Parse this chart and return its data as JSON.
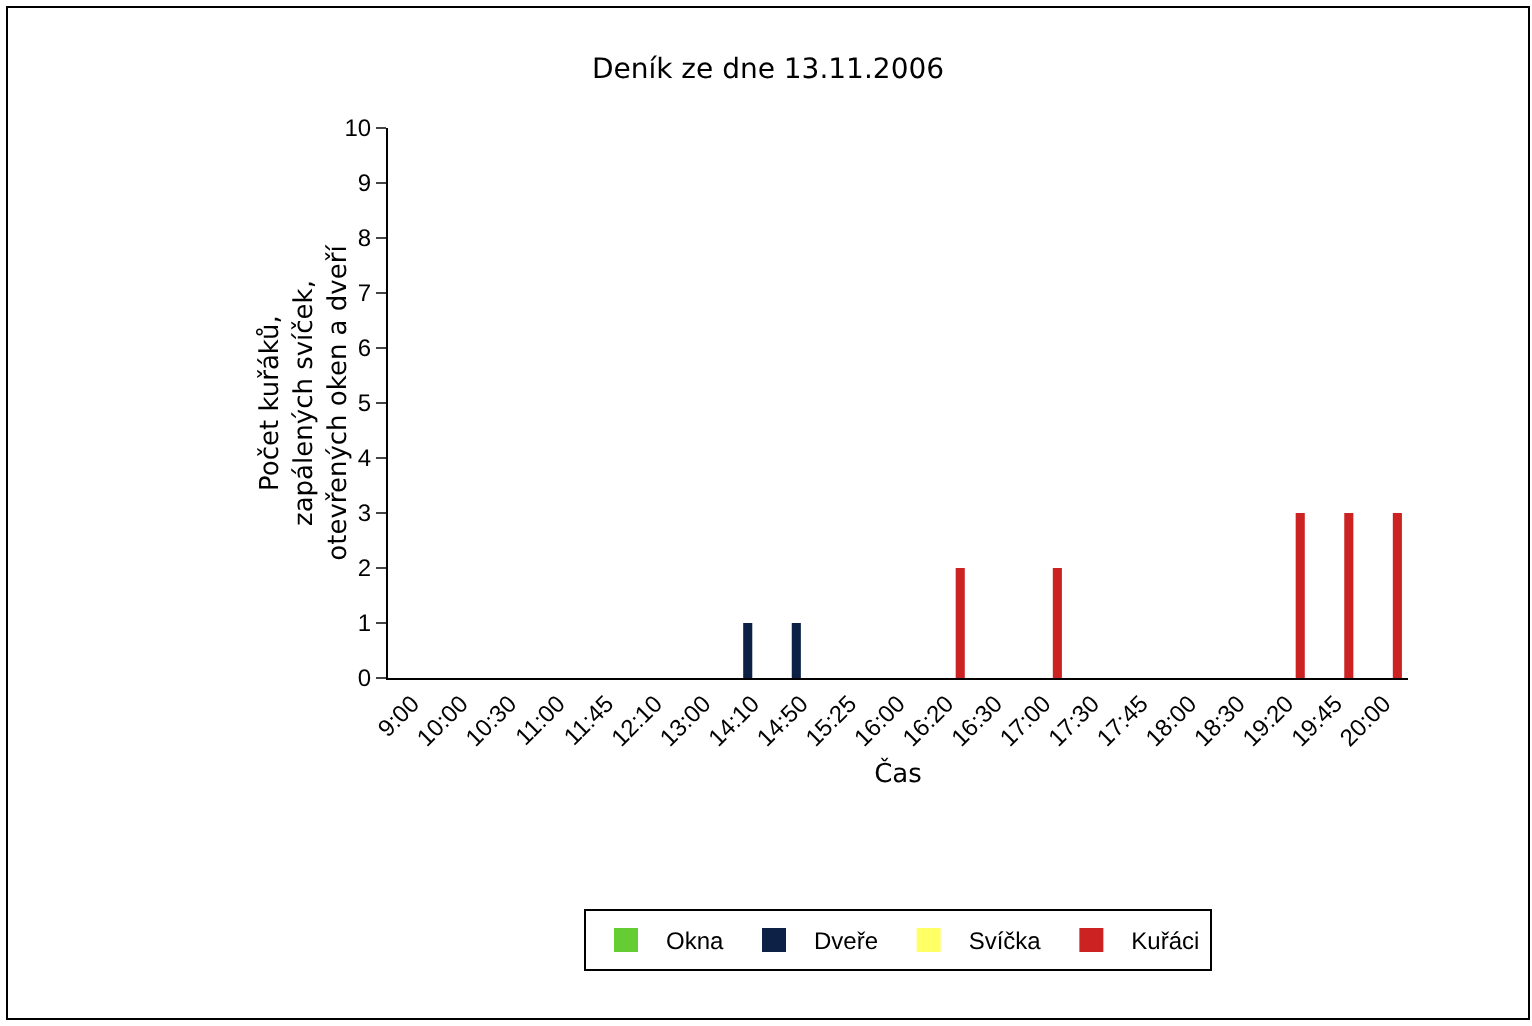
{
  "chart_data": {
    "type": "bar",
    "title": "Deník ze dne 13.11.2006",
    "xlabel": "Čas",
    "ylabel": "Počet kuřáků,\nzapálených svíček,\notevřených oken a dveří",
    "categories": [
      "9:00",
      "10:00",
      "10:30",
      "11:00",
      "11:45",
      "12:10",
      "13:00",
      "14:10",
      "14:50",
      "15:25",
      "16:00",
      "16:20",
      "16:30",
      "17:00",
      "17:30",
      "17:45",
      "18:00",
      "18:30",
      "19:20",
      "19:45",
      "20:00"
    ],
    "series": [
      {
        "name": "Okna",
        "color": "#66cc33",
        "values": [
          0,
          0,
          0,
          0,
          0,
          0,
          0,
          0,
          0,
          0,
          0,
          0,
          0,
          0,
          0,
          0,
          0,
          0,
          0,
          0,
          0
        ]
      },
      {
        "name": "Dveře",
        "color": "#0d2147",
        "values": [
          0,
          0,
          0,
          0,
          0,
          0,
          0,
          1,
          1,
          0,
          0,
          0,
          0,
          0,
          0,
          0,
          0,
          0,
          0,
          0,
          0
        ]
      },
      {
        "name": "Svíčka",
        "color": "#ffff66",
        "values": [
          0,
          0,
          0,
          0,
          0,
          0,
          0,
          0,
          0,
          0,
          0,
          0,
          0,
          0,
          0,
          0,
          0,
          0,
          0,
          0,
          0
        ]
      },
      {
        "name": "Kuřáci",
        "color": "#cc2222",
        "values": [
          0,
          0,
          0,
          0,
          0,
          0,
          0,
          0,
          0,
          0,
          0,
          2,
          0,
          2,
          0,
          0,
          0,
          0,
          3,
          3,
          3
        ]
      }
    ],
    "ylim": [
      0,
      10
    ],
    "yticks": [
      0,
      1,
      2,
      3,
      4,
      5,
      6,
      7,
      8,
      9,
      10
    ],
    "grid": false,
    "legend": "bottom"
  }
}
